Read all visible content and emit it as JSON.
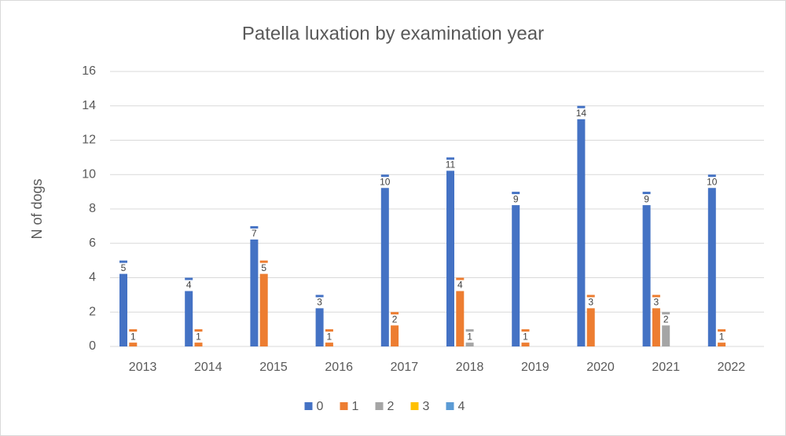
{
  "chart_data": {
    "type": "bar",
    "title": "Patella luxation by examination year",
    "y_label": "N of dogs",
    "categories": [
      "2013",
      "2014",
      "2015",
      "2016",
      "2017",
      "2018",
      "2019",
      "2020",
      "2021",
      "2022"
    ],
    "series": [
      {
        "name": "0",
        "color": "#4472c4",
        "values": [
          5,
          4,
          7,
          3,
          10,
          11,
          9,
          14,
          9,
          10
        ]
      },
      {
        "name": "1",
        "color": "#ed7d31",
        "values": [
          1,
          1,
          5,
          1,
          2,
          4,
          1,
          3,
          3,
          1
        ]
      },
      {
        "name": "2",
        "color": "#a5a5a5",
        "values": [
          0,
          0,
          0,
          0,
          0,
          1,
          0,
          0,
          2,
          0
        ]
      },
      {
        "name": "3",
        "color": "#ffc000",
        "values": [
          0,
          0,
          0,
          0,
          0,
          0,
          0,
          0,
          0,
          0
        ]
      },
      {
        "name": "4",
        "color": "#5b9bd5",
        "values": [
          0,
          0,
          0,
          0,
          0,
          0,
          0,
          0,
          0,
          0
        ]
      }
    ],
    "ylim": [
      0,
      16
    ],
    "yticks": [
      0,
      2,
      4,
      6,
      8,
      10,
      12,
      14,
      16
    ],
    "grid": true,
    "legend": "bottom"
  }
}
